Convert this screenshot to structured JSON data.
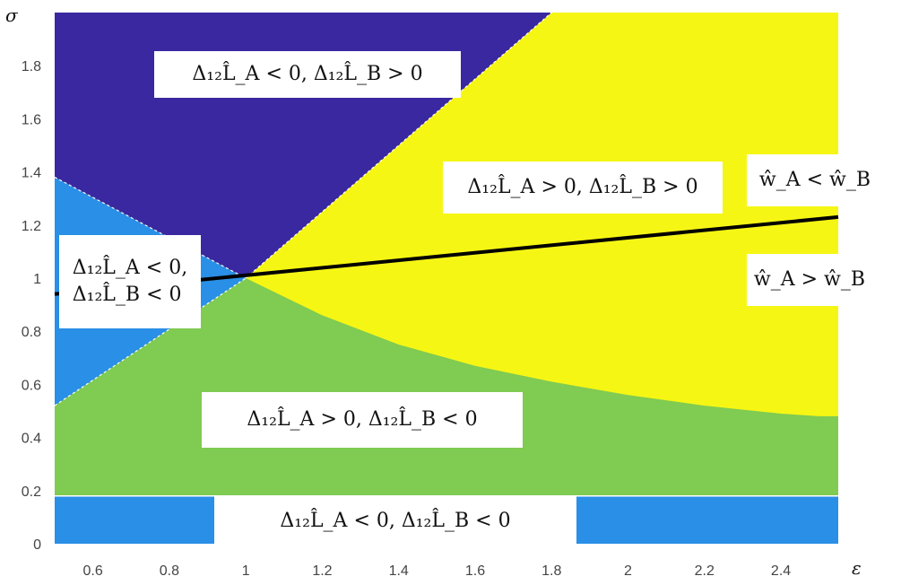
{
  "chart_data": {
    "type": "heatmap",
    "xlabel": "ε",
    "ylabel": "σ",
    "xlim": [
      0.5,
      2.55
    ],
    "ylim": [
      0,
      2
    ],
    "x_ticks": [
      "0.6",
      "0.8",
      "1",
      "1.2",
      "1.4",
      "1.6",
      "1.8",
      "2",
      "2.2",
      "2.4"
    ],
    "y_ticks": [
      "0",
      "0.2",
      "0.4",
      "0.6",
      "0.8",
      "1",
      "1.2",
      "1.4",
      "1.6",
      "1.8"
    ],
    "regions": [
      {
        "id": "bottom_blue",
        "label": "Δ₁₂L̂_A < 0, Δ₁₂L̂_B < 0",
        "color": "#2a8fe6"
      },
      {
        "id": "green",
        "label": "Δ₁₂L̂_A > 0, Δ₁₂L̂_B < 0",
        "color": "#80cb52"
      },
      {
        "id": "yellow",
        "label": "Δ₁₂L̂_A > 0, Δ₁₂L̂_B > 0",
        "color": "#f6f614"
      },
      {
        "id": "purple",
        "label": "Δ₁₂L̂_A < 0, Δ₁₂L̂_B > 0",
        "color": "#3a28a0"
      },
      {
        "id": "left_blue",
        "label": "Δ₁₂L̂_A < 0,\nΔ₁₂L̂_B < 0",
        "color": "#2a8fe6"
      }
    ],
    "boundaries": {
      "bottom_band_sigma": 0.18,
      "purple_left_start_sigma": 1.38,
      "purple_right_end": {
        "eps": 1.8,
        "sigma": 2.0
      },
      "left_blue_bottom_start_sigma": 0.52,
      "green_yellow_curve": [
        {
          "eps": 1.0,
          "sigma": 1.0
        },
        {
          "eps": 1.2,
          "sigma": 0.86
        },
        {
          "eps": 1.4,
          "sigma": 0.75
        },
        {
          "eps": 1.6,
          "sigma": 0.67
        },
        {
          "eps": 1.8,
          "sigma": 0.61
        },
        {
          "eps": 2.0,
          "sigma": 0.56
        },
        {
          "eps": 2.2,
          "sigma": 0.52
        },
        {
          "eps": 2.4,
          "sigma": 0.49
        },
        {
          "eps": 2.5,
          "sigma": 0.48
        }
      ]
    },
    "line": {
      "name": "w-line",
      "points": [
        {
          "eps": 0.5,
          "sigma": 0.94
        },
        {
          "eps": 2.55,
          "sigma": 1.23
        }
      ],
      "color": "#000000"
    },
    "line_annotations": {
      "above": "ŵ_A < ŵ_B",
      "below": "ŵ_A > ŵ_B"
    },
    "grid": false
  }
}
